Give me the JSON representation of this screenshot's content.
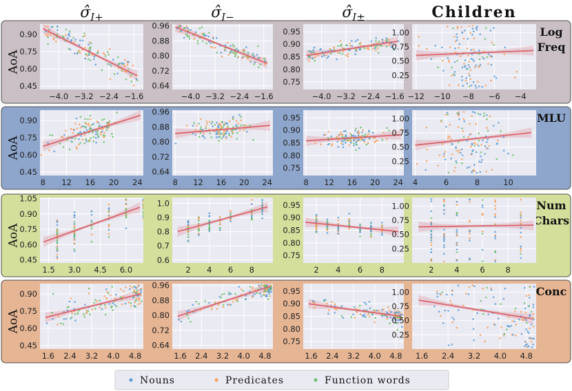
{
  "figure": {
    "column_titles": [
      "σ̂_{I+}",
      "σ̂_{I−}",
      "σ̂_{I±}",
      "Children"
    ],
    "y_axis_label": "AoA",
    "row_labels": [
      [
        "Log",
        "Freq"
      ],
      [
        "MLU"
      ],
      [
        "Num",
        "Chars"
      ],
      [
        "Conc"
      ]
    ],
    "row_colors": [
      "#c9bfc4",
      "#8ea6cc",
      "#d4df9c",
      "#e6b594"
    ],
    "series_colors": {
      "Nouns": "#5b9bd5",
      "Predicates": "#f5a05a",
      "Function words": "#6cbf6c"
    },
    "fit_color": "#d9646c"
  },
  "legend": {
    "items": [
      "Nouns",
      "Predicates",
      "Function words"
    ]
  },
  "chart_data": [
    {
      "row": "Log Freq",
      "col": "σ̂_{I+}",
      "type": "scatter",
      "x_range": [
        -4.6,
        -1.3
      ],
      "y_range": [
        0.42,
        0.99
      ],
      "x_ticks": [
        -4.0,
        -3.2,
        -2.4,
        -1.6
      ],
      "x_tick_labels": [
        "−4.0",
        "−3.2",
        "−2.4",
        "−1.6"
      ],
      "y_ticks": [
        0.45,
        0.6,
        0.75,
        0.9
      ],
      "y_tick_labels": [
        "0.45",
        "0.60",
        "0.75",
        "0.90"
      ],
      "fit": {
        "x": [
          -4.5,
          -1.5
        ],
        "y": [
          0.95,
          0.54
        ]
      },
      "mix": [
        0.3,
        0.35,
        0.35
      ],
      "x_pattern": "uniform",
      "slope_sign": -1,
      "spread": 0.07
    },
    {
      "row": "Log Freq",
      "col": "σ̂_{I−}",
      "type": "scatter",
      "x_range": [
        -4.6,
        -1.3
      ],
      "y_range": [
        0.62,
        0.97
      ],
      "x_ticks": [
        -4.0,
        -3.2,
        -2.4,
        -1.6
      ],
      "x_tick_labels": [
        "−4.0",
        "−3.2",
        "−2.4",
        "−1.6"
      ],
      "y_ticks": [
        0.64,
        0.72,
        0.8,
        0.88,
        0.96
      ],
      "y_tick_labels": [
        "0.64",
        "0.72",
        "0.80",
        "0.88",
        "0.96"
      ],
      "fit": {
        "x": [
          -4.5,
          -1.5
        ],
        "y": [
          0.955,
          0.76
        ]
      },
      "mix": [
        0.3,
        0.35,
        0.35
      ],
      "x_pattern": "uniform",
      "slope_sign": -1,
      "spread": 0.05
    },
    {
      "row": "Log Freq",
      "col": "σ̂_{I±}",
      "type": "scatter",
      "x_range": [
        -4.6,
        -1.3
      ],
      "y_range": [
        0.72,
        0.98
      ],
      "x_ticks": [
        -4.0,
        -3.2,
        -2.4,
        -1.6
      ],
      "x_tick_labels": [
        "−4.0",
        "−3.2",
        "−2.4",
        "−1.6"
      ],
      "y_ticks": [
        0.75,
        0.8,
        0.85,
        0.9,
        0.95
      ],
      "y_tick_labels": [
        "0.75",
        "0.80",
        "0.85",
        "0.90",
        "0.95"
      ],
      "fit": {
        "x": [
          -4.5,
          -1.5
        ],
        "y": [
          0.855,
          0.912
        ]
      },
      "mix": [
        0.4,
        0.35,
        0.25
      ],
      "x_pattern": "uniform",
      "slope_sign": 1,
      "spread": 0.045
    },
    {
      "row": "Log Freq",
      "col": "Children",
      "type": "scatter",
      "x_range": [
        -12.3,
        -2.8
      ],
      "y_range": [
        0.0,
        1.15
      ],
      "x_ticks": [
        -12,
        -10,
        -8,
        -6,
        -4
      ],
      "x_tick_labels": [
        "−12",
        "−10",
        "−8",
        "−6",
        "−4"
      ],
      "y_ticks": [
        0.25,
        0.5,
        0.75,
        1.0
      ],
      "y_tick_labels": [
        "0.25",
        "0.50",
        "0.75",
        "1.00"
      ],
      "fit": {
        "x": [
          -12,
          -3
        ],
        "y": [
          0.6,
          0.685
        ]
      },
      "mix": [
        0.45,
        0.4,
        0.15
      ],
      "x_pattern": "center",
      "x_center": -8,
      "slope_sign": 0,
      "spread": 0.2
    },
    {
      "row": "MLU",
      "col": "σ̂_{I+}",
      "type": "scatter",
      "x_range": [
        7.5,
        25.0
      ],
      "y_range": [
        0.42,
        0.99
      ],
      "x_ticks": [
        8,
        12,
        16,
        20,
        24
      ],
      "x_tick_labels": [
        "8",
        "12",
        "16",
        "20",
        "24"
      ],
      "y_ticks": [
        0.45,
        0.6,
        0.75,
        0.9
      ],
      "y_tick_labels": [
        "0.45",
        "0.60",
        "0.75",
        "0.90"
      ],
      "fit": {
        "x": [
          8,
          24.5
        ],
        "y": [
          0.675,
          0.945
        ]
      },
      "mix": [
        0.3,
        0.35,
        0.35
      ],
      "x_pattern": "center",
      "x_center": 16,
      "slope_sign": 1,
      "spread": 0.08
    },
    {
      "row": "MLU",
      "col": "σ̂_{I−}",
      "type": "scatter",
      "x_range": [
        7.5,
        25.0
      ],
      "y_range": [
        0.62,
        0.97
      ],
      "x_ticks": [
        8,
        12,
        16,
        20,
        24
      ],
      "x_tick_labels": [
        "8",
        "12",
        "16",
        "20",
        "24"
      ],
      "y_ticks": [
        0.64,
        0.72,
        0.8,
        0.88,
        0.96
      ],
      "y_tick_labels": [
        "0.64",
        "0.72",
        "0.80",
        "0.88",
        "0.96"
      ],
      "fit": {
        "x": [
          8,
          24.5
        ],
        "y": [
          0.845,
          0.888
        ]
      },
      "mix": [
        0.3,
        0.35,
        0.35
      ],
      "x_pattern": "center",
      "x_center": 16,
      "slope_sign": 0,
      "spread": 0.06
    },
    {
      "row": "MLU",
      "col": "σ̂_{I±}",
      "type": "scatter",
      "x_range": [
        7.5,
        25.0
      ],
      "y_range": [
        0.72,
        0.98
      ],
      "x_ticks": [
        8,
        12,
        16,
        20,
        24
      ],
      "x_tick_labels": [
        "8",
        "12",
        "16",
        "20",
        "24"
      ],
      "y_ticks": [
        0.75,
        0.8,
        0.85,
        0.9,
        0.95
      ],
      "y_tick_labels": [
        "0.75",
        "0.80",
        "0.85",
        "0.90",
        "0.95"
      ],
      "fit": {
        "x": [
          8,
          24.5
        ],
        "y": [
          0.858,
          0.882
        ]
      },
      "mix": [
        0.4,
        0.35,
        0.25
      ],
      "x_pattern": "center",
      "x_center": 16,
      "slope_sign": 0,
      "spread": 0.045
    },
    {
      "row": "MLU",
      "col": "Children",
      "type": "scatter",
      "x_range": [
        3.8,
        11.8
      ],
      "y_range": [
        0.0,
        1.15
      ],
      "x_ticks": [
        4,
        6,
        8,
        10
      ],
      "x_tick_labels": [
        "4",
        "6",
        "8",
        "10"
      ],
      "y_ticks": [
        0.25,
        0.5,
        0.75,
        1.0
      ],
      "y_tick_labels": [
        "0.25",
        "0.50",
        "0.75",
        "1.00"
      ],
      "fit": {
        "x": [
          4,
          11.5
        ],
        "y": [
          0.535,
          0.755
        ]
      },
      "mix": [
        0.45,
        0.4,
        0.15
      ],
      "x_pattern": "center",
      "x_center": 7.4,
      "slope_sign": 1,
      "spread": 0.2
    },
    {
      "row": "Num Chars",
      "col": "σ̂_{I+}",
      "type": "scatter",
      "x_range": [
        1.0,
        7.0
      ],
      "y_range": [
        0.42,
        1.06
      ],
      "x_ticks": [
        1.5,
        3.0,
        4.5,
        6.0
      ],
      "x_tick_labels": [
        "1.5",
        "3.0",
        "4.5",
        "6.0"
      ],
      "y_ticks": [
        0.45,
        0.6,
        0.75,
        0.9,
        1.05
      ],
      "y_tick_labels": [
        "0.45",
        "0.60",
        "0.75",
        "0.90",
        "1.05"
      ],
      "fit": {
        "x": [
          1.2,
          6.8
        ],
        "y": [
          0.625,
          0.965
        ]
      },
      "mix": [
        0.3,
        0.35,
        0.35
      ],
      "x_pattern": "discrete",
      "x_values": [
        2,
        3,
        4,
        5,
        6,
        7
      ],
      "slope_sign": 1,
      "spread": 0.09
    },
    {
      "row": "Num Chars",
      "col": "σ̂_{I−}",
      "type": "scatter",
      "x_range": [
        0.5,
        10.0
      ],
      "y_range": [
        0.58,
        1.04
      ],
      "x_ticks": [
        2,
        4,
        6,
        8
      ],
      "x_tick_labels": [
        "2",
        "4",
        "6",
        "8"
      ],
      "y_ticks": [
        0.6,
        0.7,
        0.8,
        0.9,
        1.0
      ],
      "y_tick_labels": [
        "0.6",
        "0.7",
        "0.8",
        "0.9",
        "1.0"
      ],
      "fit": {
        "x": [
          1,
          9.5
        ],
        "y": [
          0.8,
          0.975
        ]
      },
      "mix": [
        0.3,
        0.35,
        0.35
      ],
      "x_pattern": "discrete",
      "x_values": [
        2,
        3,
        4,
        5,
        6,
        8,
        9
      ],
      "slope_sign": 1,
      "spread": 0.06
    },
    {
      "row": "Num Chars",
      "col": "σ̂_{I±}",
      "type": "scatter",
      "x_range": [
        0.8,
        10.0
      ],
      "y_range": [
        0.72,
        0.98
      ],
      "x_ticks": [
        2,
        4,
        6,
        8
      ],
      "x_tick_labels": [
        "2",
        "4",
        "6",
        "8"
      ],
      "y_ticks": [
        0.75,
        0.8,
        0.85,
        0.9,
        0.95
      ],
      "y_tick_labels": [
        "0.75",
        "0.80",
        "0.85",
        "0.90",
        "0.95"
      ],
      "fit": {
        "x": [
          1,
          9.5
        ],
        "y": [
          0.882,
          0.845
        ]
      },
      "mix": [
        0.4,
        0.35,
        0.25
      ],
      "x_pattern": "discrete",
      "x_values": [
        2,
        3,
        4,
        5,
        6,
        7,
        8
      ],
      "slope_sign": 0,
      "spread": 0.045
    },
    {
      "row": "Num Chars",
      "col": "Children",
      "type": "scatter",
      "x_range": [
        0.5,
        10.2
      ],
      "y_range": [
        0.0,
        1.15
      ],
      "x_ticks": [
        2,
        4,
        6,
        8
      ],
      "x_tick_labels": [
        "2",
        "4",
        "6",
        "8"
      ],
      "y_ticks": [
        0.25,
        0.5,
        0.75,
        1.0
      ],
      "y_tick_labels": [
        "0.25",
        "0.50",
        "0.75",
        "1.00"
      ],
      "fit": {
        "x": [
          1,
          10
        ],
        "y": [
          0.635,
          0.665
        ]
      },
      "mix": [
        0.45,
        0.4,
        0.15
      ],
      "x_pattern": "discrete",
      "x_values": [
        2,
        3,
        4,
        5,
        6,
        7,
        9
      ],
      "slope_sign": 0,
      "spread": 0.22
    },
    {
      "row": "Conc",
      "col": "σ̂_{I+}",
      "type": "scatter",
      "x_range": [
        1.3,
        5.1
      ],
      "y_range": [
        0.42,
        0.99
      ],
      "x_ticks": [
        1.6,
        2.4,
        3.2,
        4.0,
        4.8
      ],
      "x_tick_labels": [
        "1.6",
        "2.4",
        "3.2",
        "4.0",
        "4.8"
      ],
      "y_ticks": [
        0.45,
        0.6,
        0.75,
        0.9
      ],
      "y_tick_labels": [
        "0.45",
        "0.60",
        "0.75",
        "0.90"
      ],
      "fit": {
        "x": [
          1.5,
          5.0
        ],
        "y": [
          0.695,
          0.9
        ]
      },
      "mix": [
        0.3,
        0.35,
        0.35
      ],
      "x_pattern": "high_cluster",
      "slope_sign": 1,
      "spread": 0.08
    },
    {
      "row": "Conc",
      "col": "σ̂_{I−}",
      "type": "scatter",
      "x_range": [
        1.3,
        5.1
      ],
      "y_range": [
        0.62,
        0.97
      ],
      "x_ticks": [
        1.6,
        2.4,
        3.2,
        4.0,
        4.8
      ],
      "x_tick_labels": [
        "1.6",
        "2.4",
        "3.2",
        "4.0",
        "4.8"
      ],
      "y_ticks": [
        0.64,
        0.72,
        0.8,
        0.88,
        0.96
      ],
      "y_tick_labels": [
        "0.64",
        "0.72",
        "0.80",
        "0.88",
        "0.96"
      ],
      "fit": {
        "x": [
          1.5,
          5.0
        ],
        "y": [
          0.795,
          0.955
        ]
      },
      "mix": [
        0.3,
        0.35,
        0.35
      ],
      "x_pattern": "high_cluster",
      "slope_sign": 1,
      "spread": 0.05
    },
    {
      "row": "Conc",
      "col": "σ̂_{I±}",
      "type": "scatter",
      "x_range": [
        1.3,
        5.1
      ],
      "y_range": [
        0.72,
        0.98
      ],
      "x_ticks": [
        1.6,
        2.4,
        3.2,
        4.0,
        4.8
      ],
      "x_tick_labels": [
        "1.6",
        "2.4",
        "3.2",
        "4.0",
        "4.8"
      ],
      "y_ticks": [
        0.75,
        0.8,
        0.85,
        0.9,
        0.95
      ],
      "y_tick_labels": [
        "0.75",
        "0.80",
        "0.85",
        "0.90",
        "0.95"
      ],
      "fit": {
        "x": [
          1.5,
          5.0
        ],
        "y": [
          0.9,
          0.85
        ]
      },
      "mix": [
        0.45,
        0.35,
        0.2
      ],
      "x_pattern": "high_cluster",
      "slope_sign": -1,
      "spread": 0.045
    },
    {
      "row": "Conc",
      "col": "Children",
      "type": "scatter",
      "x_range": [
        1.3,
        5.1
      ],
      "y_range": [
        0.0,
        1.15
      ],
      "x_ticks": [
        1.6,
        2.4,
        3.2,
        4.0,
        4.8
      ],
      "x_tick_labels": [
        "1.6",
        "2.4",
        "3.2",
        "4.0",
        "4.8"
      ],
      "y_ticks": [
        0.25,
        0.5,
        0.75,
        1.0
      ],
      "y_tick_labels": [
        "0.25",
        "0.50",
        "0.75",
        "1.00"
      ],
      "fit": {
        "x": [
          1.5,
          5.0
        ],
        "y": [
          0.86,
          0.53
        ]
      },
      "mix": [
        0.5,
        0.35,
        0.15
      ],
      "x_pattern": "high_cluster",
      "slope_sign": -1,
      "spread": 0.18
    }
  ]
}
